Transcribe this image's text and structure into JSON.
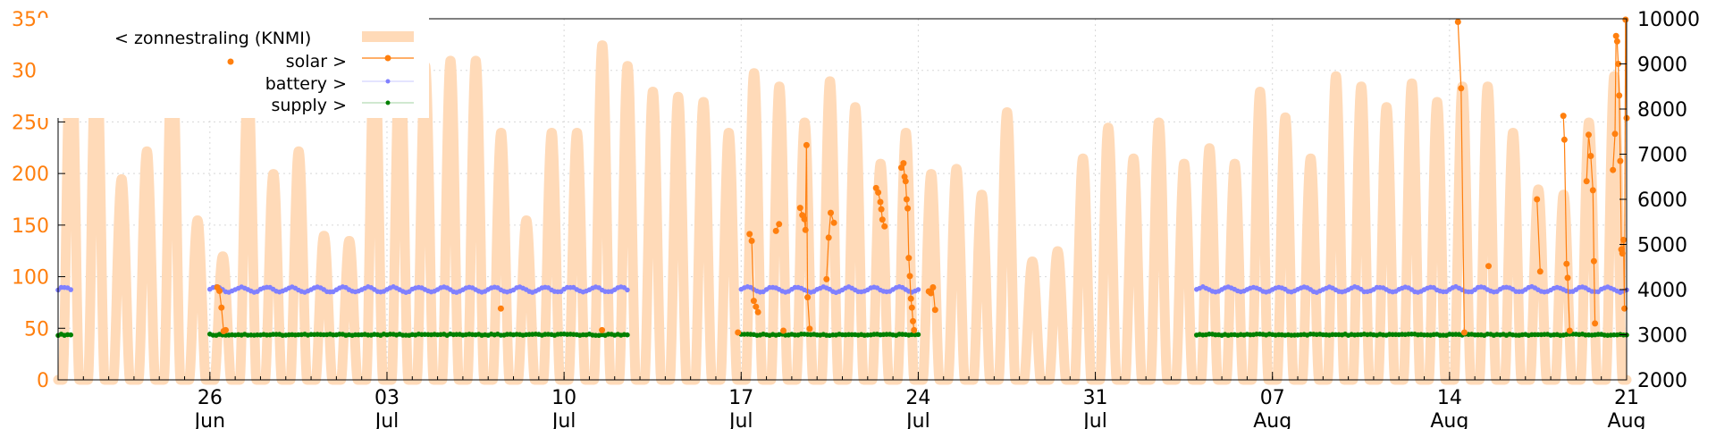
{
  "chart_data": {
    "type": "line",
    "x_range": [
      "2023-06-20",
      "2023-08-21"
    ],
    "y_left": {
      "range": [
        0,
        350
      ],
      "ticks": [
        0,
        50,
        100,
        150,
        200,
        250,
        300,
        350
      ],
      "color": "#ff7f0e"
    },
    "y_right": {
      "range": [
        2000,
        10000
      ],
      "ticks": [
        2000,
        3000,
        4000,
        5000,
        6000,
        7000,
        8000,
        9000,
        10000
      ]
    },
    "x_ticks": [
      {
        "date": "2023-06-26",
        "day": "26",
        "month": "Jun"
      },
      {
        "date": "2023-07-03",
        "day": "03",
        "month": "Jul"
      },
      {
        "date": "2023-07-10",
        "day": "10",
        "month": "Jul"
      },
      {
        "date": "2023-07-17",
        "day": "17",
        "month": "Jul"
      },
      {
        "date": "2023-07-24",
        "day": "24",
        "month": "Jul"
      },
      {
        "date": "2023-07-31",
        "day": "31",
        "month": "Jul"
      },
      {
        "date": "2023-08-07",
        "day": "07",
        "month": "Aug"
      },
      {
        "date": "2023-08-14",
        "day": "14",
        "month": "Aug"
      },
      {
        "date": "2023-08-21",
        "day": "21",
        "month": "Aug"
      }
    ],
    "grid": true,
    "legend_position": "top-left",
    "series": [
      {
        "name": "< zonnestraling (KNMI)",
        "axis": "left",
        "style": "filled-band",
        "color": "#ffdab8",
        "daily_peaks": [
          {
            "date": "2023-06-20",
            "value": 335
          },
          {
            "date": "2023-06-21",
            "value": 330
          },
          {
            "date": "2023-06-22",
            "value": 195
          },
          {
            "date": "2023-06-23",
            "value": 222
          },
          {
            "date": "2023-06-24",
            "value": 320
          },
          {
            "date": "2023-06-25",
            "value": 155
          },
          {
            "date": "2023-06-26",
            "value": 120
          },
          {
            "date": "2023-06-27",
            "value": 288
          },
          {
            "date": "2023-06-28",
            "value": 200
          },
          {
            "date": "2023-06-29",
            "value": 222
          },
          {
            "date": "2023-06-30",
            "value": 140
          },
          {
            "date": "2023-07-01",
            "value": 135
          },
          {
            "date": "2023-07-02",
            "value": 325
          },
          {
            "date": "2023-07-03",
            "value": 320
          },
          {
            "date": "2023-07-04",
            "value": 305
          },
          {
            "date": "2023-07-05",
            "value": 310
          },
          {
            "date": "2023-07-06",
            "value": 310
          },
          {
            "date": "2023-07-07",
            "value": 240
          },
          {
            "date": "2023-07-08",
            "value": 155
          },
          {
            "date": "2023-07-09",
            "value": 240
          },
          {
            "date": "2023-07-10",
            "value": 240
          },
          {
            "date": "2023-07-11",
            "value": 325
          },
          {
            "date": "2023-07-12",
            "value": 305
          },
          {
            "date": "2023-07-13",
            "value": 280
          },
          {
            "date": "2023-07-14",
            "value": 275
          },
          {
            "date": "2023-07-15",
            "value": 270
          },
          {
            "date": "2023-07-16",
            "value": 240
          },
          {
            "date": "2023-07-17",
            "value": 298
          },
          {
            "date": "2023-07-18",
            "value": 285
          },
          {
            "date": "2023-07-19",
            "value": 250
          },
          {
            "date": "2023-07-20",
            "value": 290
          },
          {
            "date": "2023-07-21",
            "value": 265
          },
          {
            "date": "2023-07-22",
            "value": 210
          },
          {
            "date": "2023-07-23",
            "value": 240
          },
          {
            "date": "2023-07-24",
            "value": 200
          },
          {
            "date": "2023-07-25",
            "value": 205
          },
          {
            "date": "2023-07-26",
            "value": 180
          },
          {
            "date": "2023-07-27",
            "value": 260
          },
          {
            "date": "2023-07-28",
            "value": 115
          },
          {
            "date": "2023-07-29",
            "value": 125
          },
          {
            "date": "2023-07-30",
            "value": 215
          },
          {
            "date": "2023-07-31",
            "value": 245
          },
          {
            "date": "2023-08-01",
            "value": 215
          },
          {
            "date": "2023-08-02",
            "value": 250
          },
          {
            "date": "2023-08-03",
            "value": 210
          },
          {
            "date": "2023-08-04",
            "value": 225
          },
          {
            "date": "2023-08-05",
            "value": 210
          },
          {
            "date": "2023-08-06",
            "value": 280
          },
          {
            "date": "2023-08-07",
            "value": 255
          },
          {
            "date": "2023-08-08",
            "value": 215
          },
          {
            "date": "2023-08-09",
            "value": 295
          },
          {
            "date": "2023-08-10",
            "value": 285
          },
          {
            "date": "2023-08-11",
            "value": 265
          },
          {
            "date": "2023-08-12",
            "value": 288
          },
          {
            "date": "2023-08-13",
            "value": 270
          },
          {
            "date": "2023-08-14",
            "value": 285
          },
          {
            "date": "2023-08-15",
            "value": 285
          },
          {
            "date": "2023-08-16",
            "value": 240
          },
          {
            "date": "2023-08-17",
            "value": 185
          },
          {
            "date": "2023-08-18",
            "value": 180
          },
          {
            "date": "2023-08-19",
            "value": 250
          },
          {
            "date": "2023-08-20",
            "value": 295
          }
        ]
      },
      {
        "name": "solar >",
        "axis": "right",
        "style": "points-lines",
        "color": "#ff7f0e",
        "points": [
          {
            "t": "2023-06-26T07:00",
            "v": 4050
          },
          {
            "t": "2023-06-26T09:00",
            "v": 3970
          },
          {
            "t": "2023-06-26T11:00",
            "v": 3600
          },
          {
            "t": "2023-06-26T13:00",
            "v": 3080
          },
          {
            "t": "2023-06-26T15:00",
            "v": 3100
          },
          {
            "t": "2023-07-07T12:00",
            "v": 3580
          },
          {
            "t": "2023-07-11T12:00",
            "v": 3100
          },
          {
            "t": "2023-07-16T21:00",
            "v": 3050
          },
          {
            "t": "2023-07-17T08:00",
            "v": 5230
          },
          {
            "t": "2023-07-17T10:00",
            "v": 5080
          },
          {
            "t": "2023-07-17T12:00",
            "v": 3750
          },
          {
            "t": "2023-07-17T14:00",
            "v": 3620
          },
          {
            "t": "2023-07-17T16:00",
            "v": 3500
          },
          {
            "t": "2023-07-18T09:00",
            "v": 5300
          },
          {
            "t": "2023-07-18T12:00",
            "v": 5450
          },
          {
            "t": "2023-07-18T16:00",
            "v": 3090
          },
          {
            "t": "2023-07-19T08:00",
            "v": 5810
          },
          {
            "t": "2023-07-19T10:00",
            "v": 5650
          },
          {
            "t": "2023-07-19T12:00",
            "v": 5560
          },
          {
            "t": "2023-07-19T13:00",
            "v": 5320
          },
          {
            "t": "2023-07-19T14:00",
            "v": 7200
          },
          {
            "t": "2023-07-19T15:00",
            "v": 3830
          },
          {
            "t": "2023-07-19T17:00",
            "v": 3130
          },
          {
            "t": "2023-07-20T09:00",
            "v": 4230
          },
          {
            "t": "2023-07-20T11:00",
            "v": 5150
          },
          {
            "t": "2023-07-20T13:00",
            "v": 5700
          },
          {
            "t": "2023-07-20T16:00",
            "v": 5480
          },
          {
            "t": "2023-07-22T08:00",
            "v": 6250
          },
          {
            "t": "2023-07-22T10:00",
            "v": 6150
          },
          {
            "t": "2023-07-22T12:00",
            "v": 5940
          },
          {
            "t": "2023-07-22T13:00",
            "v": 5780
          },
          {
            "t": "2023-07-22T14:00",
            "v": 5550
          },
          {
            "t": "2023-07-22T16:00",
            "v": 5400
          },
          {
            "t": "2023-07-23T08:00",
            "v": 6700
          },
          {
            "t": "2023-07-23T10:00",
            "v": 6800
          },
          {
            "t": "2023-07-23T11:00",
            "v": 6500
          },
          {
            "t": "2023-07-23T12:00",
            "v": 6400
          },
          {
            "t": "2023-07-23T13:00",
            "v": 6000
          },
          {
            "t": "2023-07-23T14:00",
            "v": 5800
          },
          {
            "t": "2023-07-23T15:00",
            "v": 4700
          },
          {
            "t": "2023-07-23T16:00",
            "v": 4300
          },
          {
            "t": "2023-07-23T17:00",
            "v": 3800
          },
          {
            "t": "2023-07-23T18:00",
            "v": 3600
          },
          {
            "t": "2023-07-23T19:00",
            "v": 3300
          },
          {
            "t": "2023-07-23T20:00",
            "v": 3100
          },
          {
            "t": "2023-07-24T10:00",
            "v": 3960
          },
          {
            "t": "2023-07-24T12:00",
            "v": 3920
          },
          {
            "t": "2023-07-24T14:00",
            "v": 4050
          },
          {
            "t": "2023-07-24T16:00",
            "v": 3550
          },
          {
            "t": "2023-08-14T08:00",
            "v": 9930
          },
          {
            "t": "2023-08-14T11:00",
            "v": 8460
          },
          {
            "t": "2023-08-14T14:00",
            "v": 3050
          },
          {
            "t": "2023-08-15T13:00",
            "v": 4520
          },
          {
            "t": "2023-08-17T11:00",
            "v": 6000
          },
          {
            "t": "2023-08-17T14:00",
            "v": 4400
          },
          {
            "t": "2023-08-18T12:00",
            "v": 7850
          },
          {
            "t": "2023-08-18T13:00",
            "v": 7320
          },
          {
            "t": "2023-08-18T15:00",
            "v": 4570
          },
          {
            "t": "2023-08-18T16:00",
            "v": 4260
          },
          {
            "t": "2023-08-18T18:00",
            "v": 3090
          },
          {
            "t": "2023-08-19T10:00",
            "v": 6400
          },
          {
            "t": "2023-08-19T12:00",
            "v": 7430
          },
          {
            "t": "2023-08-19T14:00",
            "v": 6960
          },
          {
            "t": "2023-08-19T16:00",
            "v": 6200
          },
          {
            "t": "2023-08-19T17:00",
            "v": 4630
          },
          {
            "t": "2023-08-19T18:00",
            "v": 3250
          },
          {
            "t": "2023-08-20T11:00",
            "v": 6650
          },
          {
            "t": "2023-08-20T13:00",
            "v": 7450
          },
          {
            "t": "2023-08-20T14:00",
            "v": 9620
          },
          {
            "t": "2023-08-20T15:00",
            "v": 9500
          },
          {
            "t": "2023-08-20T16:00",
            "v": 9000
          },
          {
            "t": "2023-08-20T17:00",
            "v": 8300
          },
          {
            "t": "2023-08-20T18:00",
            "v": 6850
          },
          {
            "t": "2023-08-20T19:00",
            "v": 4890
          },
          {
            "t": "2023-08-20T20:00",
            "v": 4800
          },
          {
            "t": "2023-08-20T21:00",
            "v": 5100
          },
          {
            "t": "2023-08-20T22:00",
            "v": 3580
          },
          {
            "t": "2023-08-20T23:00",
            "v": 9980
          },
          {
            "t": "2023-08-21T00:00",
            "v": 7800
          }
        ]
      },
      {
        "name": "battery >",
        "axis": "right",
        "style": "points",
        "color": "#8080ff",
        "base_value": 4000,
        "segments": [
          [
            "2023-06-20T00:00",
            "2023-06-20T12:00"
          ],
          [
            "2023-06-26T00:00",
            "2023-07-12T12:00"
          ],
          [
            "2023-07-17T00:00",
            "2023-07-24T00:00"
          ],
          [
            "2023-08-04T00:00",
            "2023-08-21T00:00"
          ]
        ]
      },
      {
        "name": "supply >",
        "axis": "right",
        "style": "points",
        "color": "#008000",
        "base_value": 3000,
        "segments": [
          [
            "2023-06-20T00:00",
            "2023-06-20T12:00"
          ],
          [
            "2023-06-26T00:00",
            "2023-07-12T12:00"
          ],
          [
            "2023-07-17T00:00",
            "2023-07-24T00:00"
          ],
          [
            "2023-08-04T00:00",
            "2023-08-21T00:00"
          ]
        ]
      }
    ]
  }
}
